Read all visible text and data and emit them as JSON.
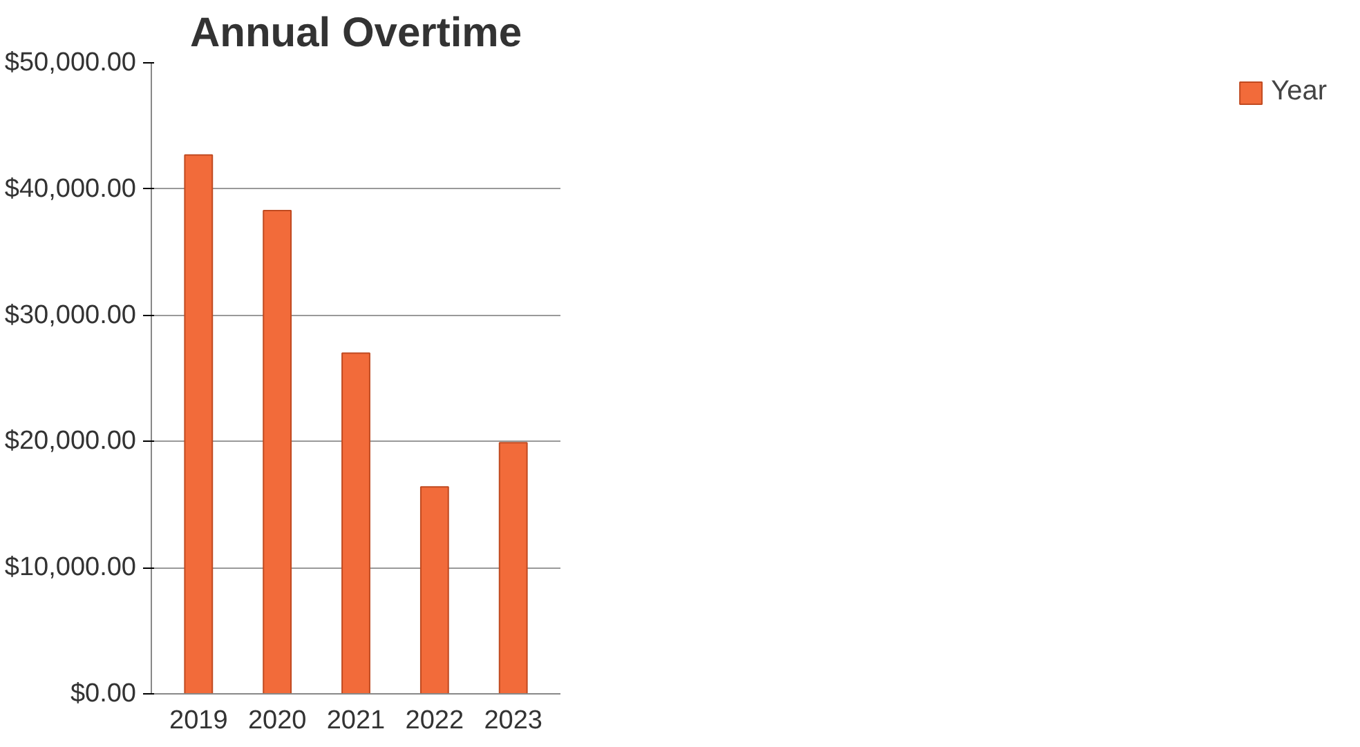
{
  "chart_data": {
    "type": "bar",
    "title": "Annual Overtime",
    "categories": [
      "2019",
      "2020",
      "2021",
      "2022",
      "2023"
    ],
    "series": [
      {
        "name": "Year",
        "color": "#f26b3a",
        "values": [
          42700,
          38300,
          27000,
          16400,
          19900
        ]
      }
    ],
    "ylim": [
      0,
      50000
    ],
    "yticks": [
      {
        "value": 0,
        "label": "$0.00"
      },
      {
        "value": 10000,
        "label": "$10,000.00"
      },
      {
        "value": 20000,
        "label": "$20,000.00"
      },
      {
        "value": 30000,
        "label": "$30,000.00"
      },
      {
        "value": 40000,
        "label": "$40,000.00"
      },
      {
        "value": 50000,
        "label": "$50,000.00"
      }
    ],
    "grid": "y",
    "legend": "right"
  }
}
